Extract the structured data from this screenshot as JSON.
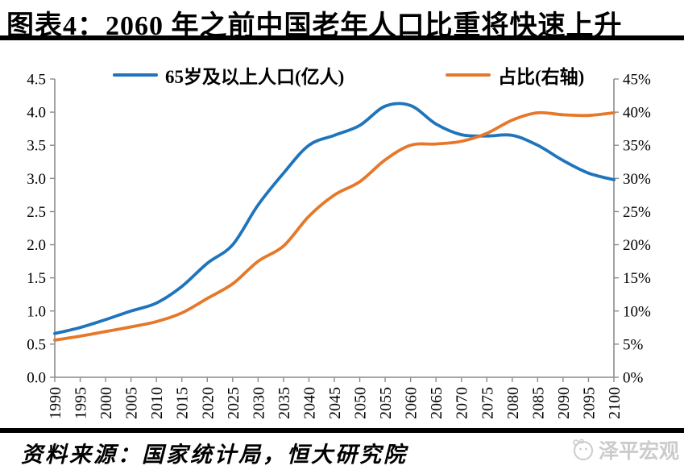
{
  "header": {
    "title": "图表4：2060 年之前中国老年人口比重将快速上升"
  },
  "legend": {
    "population": {
      "label": "65岁及以上人口(亿人)",
      "color": "#1f74bc"
    },
    "share": {
      "label": "占比(右轴)",
      "color": "#e6782a"
    }
  },
  "footer": {
    "source": "资料来源：国家统计局，恒大研究院",
    "watermark": "泽平宏观"
  },
  "colors": {
    "series_population": "#1f74bc",
    "series_share": "#e6782a",
    "axis": "#8c8c8c",
    "text": "#000000",
    "watermark": "#cbcbcb"
  },
  "chart_data": {
    "type": "line",
    "title": "图表4：2060 年之前中国老年人口比重将快速上升",
    "x": [
      1990,
      1995,
      2000,
      2005,
      2010,
      2015,
      2020,
      2025,
      2030,
      2035,
      2040,
      2045,
      2050,
      2055,
      2060,
      2065,
      2070,
      2075,
      2080,
      2085,
      2090,
      2095,
      2100
    ],
    "series": [
      {
        "name": "65岁及以上人口(亿人)",
        "axis": "left",
        "color": "#1f74bc",
        "values": [
          0.66,
          0.75,
          0.87,
          1.0,
          1.12,
          1.37,
          1.72,
          2.0,
          2.6,
          3.08,
          3.5,
          3.65,
          3.8,
          4.09,
          4.1,
          3.82,
          3.66,
          3.64,
          3.65,
          3.5,
          3.27,
          3.08,
          2.98
        ]
      },
      {
        "name": "占比(右轴)",
        "axis": "right",
        "color": "#e6782a",
        "values": [
          5.6,
          6.2,
          6.9,
          7.6,
          8.4,
          9.7,
          11.9,
          14.1,
          17.5,
          19.8,
          24.3,
          27.5,
          29.5,
          32.8,
          35.0,
          35.2,
          35.6,
          36.8,
          38.8,
          39.9,
          39.6,
          39.5,
          39.9
        ]
      }
    ],
    "left_axis": {
      "min": 0,
      "max": 4.5,
      "step": 0.5,
      "tick_labels": [
        "0.0",
        "0.5",
        "1.0",
        "1.5",
        "2.0",
        "2.5",
        "3.0",
        "3.5",
        "4.0",
        "4.5"
      ]
    },
    "right_axis": {
      "min": 0,
      "max": 45,
      "step": 5,
      "tick_labels": [
        "0%",
        "5%",
        "10%",
        "15%",
        "20%",
        "25%",
        "30%",
        "35%",
        "40%",
        "45%"
      ]
    },
    "x_tick_labels": [
      "1990",
      "1995",
      "2000",
      "2005",
      "2010",
      "2015",
      "2020",
      "2025",
      "2030",
      "2035",
      "2040",
      "2045",
      "2050",
      "2055",
      "2060",
      "2065",
      "2070",
      "2075",
      "2080",
      "2085",
      "2090",
      "2095",
      "2100"
    ],
    "grid": false,
    "legend_position": "top"
  }
}
